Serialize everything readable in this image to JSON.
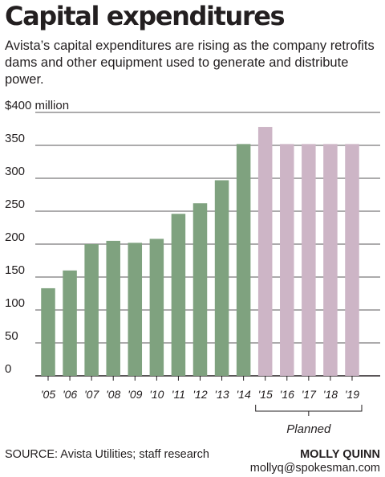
{
  "title": "Capital expenditures",
  "subtitle": "Avista’s capital expenditures are rising as the company retrofits dams and other equipment used to generate and distribute power.",
  "source": "SOURCE: Avista Utilities; staff research",
  "credit": {
    "name": "MOLLY QUINN",
    "email": "mollyq@spokesman.com"
  },
  "colors": {
    "actual": "#7fa27f",
    "planned": "#cdb5c6",
    "grid": "#231f20"
  },
  "chart_data": {
    "type": "bar",
    "categories": [
      "'05",
      "'06",
      "'07",
      "'08",
      "'09",
      "'10",
      "'11",
      "'12",
      "'13",
      "'14",
      "'15",
      "'16",
      "'17",
      "'18",
      "'19"
    ],
    "values": [
      133,
      160,
      200,
      205,
      202,
      208,
      246,
      262,
      297,
      352,
      378,
      352,
      352,
      352,
      352
    ],
    "status": [
      "actual",
      "actual",
      "actual",
      "actual",
      "actual",
      "actual",
      "actual",
      "actual",
      "actual",
      "actual",
      "planned",
      "planned",
      "planned",
      "planned",
      "planned"
    ],
    "ytick_labels": [
      "0",
      "50",
      "100",
      "150",
      "200",
      "250",
      "300",
      "350",
      "$400 million"
    ],
    "ytick_values": [
      0,
      50,
      100,
      150,
      200,
      250,
      300,
      350,
      400
    ],
    "ylim": [
      0,
      400
    ],
    "planned_label": "Planned",
    "grid": true
  }
}
